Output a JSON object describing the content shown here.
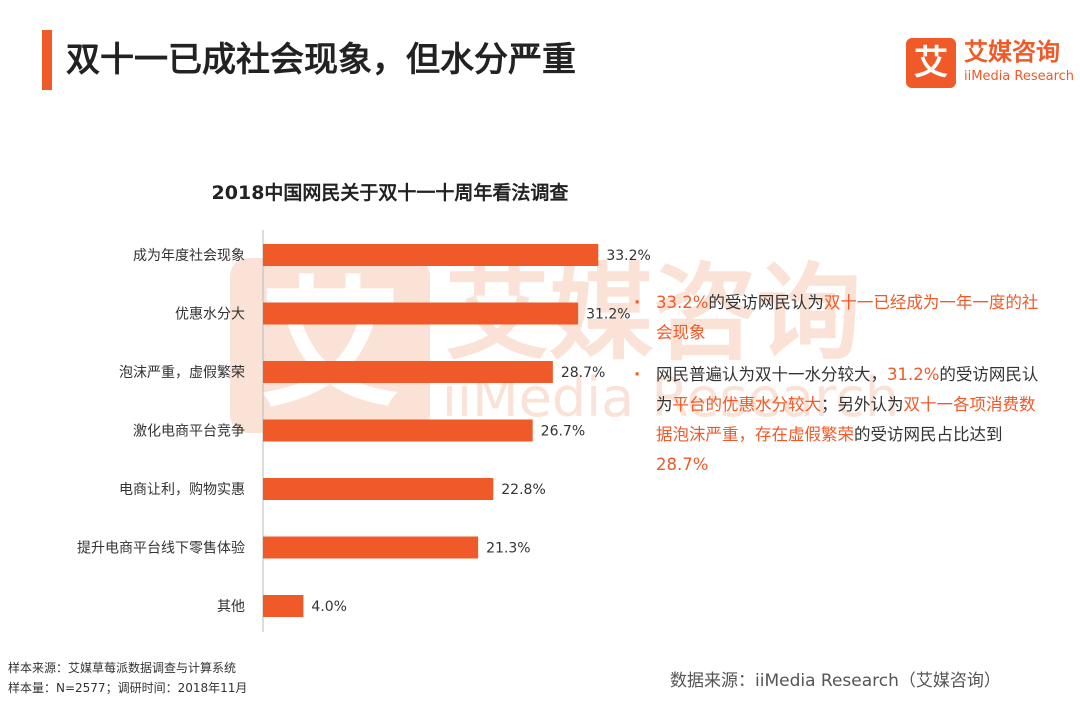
{
  "page_title": "双十一已成社会现象，但水分严重",
  "logo": {
    "mark": "艾",
    "cn": "艾媒咨询",
    "en": "iiMedia Research"
  },
  "watermark": {
    "mark": "艾",
    "cn": "艾媒咨询",
    "en": "iiMedia Research"
  },
  "chart_data": {
    "type": "bar",
    "orientation": "horizontal",
    "title": "2018中国网民关于双十一十周年看法调查",
    "categories": [
      "成为年度社会现象",
      "优惠水分大",
      "泡沫严重，虚假繁荣",
      "激化电商平台竞争",
      "电商让利，购物实惠",
      "提升电商平台线下零售体验",
      "其他"
    ],
    "values": [
      33.2,
      31.2,
      28.7,
      26.7,
      22.8,
      21.3,
      4.0
    ],
    "value_labels": [
      "33.2%",
      "31.2%",
      "28.7%",
      "26.7%",
      "22.8%",
      "21.3%",
      "4.0%"
    ],
    "unit": "%",
    "xlim": [
      0,
      40
    ],
    "color": "#f05a28"
  },
  "notes": [
    [
      {
        "t": "33.2%",
        "hl": true
      },
      {
        "t": "的受访网民认为",
        "hl": false
      },
      {
        "t": "双十一已经成为一年一度的社会现象",
        "hl": true
      }
    ],
    [
      {
        "t": "网民普遍认为双十一水分较大，",
        "hl": false
      },
      {
        "t": "31.2%",
        "hl": true
      },
      {
        "t": "的受访网民认为",
        "hl": false
      },
      {
        "t": "平台的优惠水分较大",
        "hl": true
      },
      {
        "t": "；另外认为",
        "hl": false
      },
      {
        "t": "双十一各项消费数据泡沫严重，存在虚假繁荣",
        "hl": true
      },
      {
        "t": "的受访网民占比达到",
        "hl": false
      },
      {
        "t": "28.7%",
        "hl": true
      }
    ]
  ],
  "bullet_symbol": "·",
  "footer": {
    "source_line": "样本来源：艾媒草莓派数据调查与计算系统",
    "sample_line": "样本量：N=2577；调研时间：2018年11月",
    "data_source": "数据来源：iiMedia Research（艾媒咨询）"
  }
}
